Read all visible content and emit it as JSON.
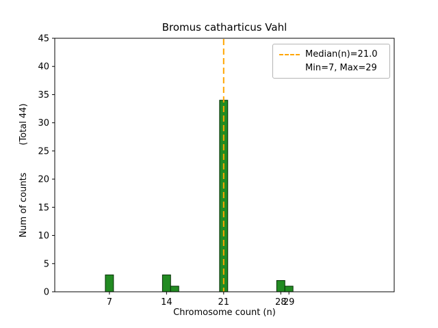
{
  "figure": {
    "title": "Bromus catharticus Vahl",
    "xlabel": "Chromosome count (n)",
    "ylabel_main": "Num of counts",
    "ylabel_total": "(Total 44)"
  },
  "legend": {
    "entries": [
      {
        "label": "Median(n)=21.0",
        "handle": "dashed-line",
        "color": "#FFA500"
      },
      {
        "label": "Min=7, Max=29",
        "handle": "none"
      }
    ]
  },
  "chart_data": {
    "type": "bar",
    "title": "Bromus catharticus Vahl",
    "xlabel": "Chromosome count (n)",
    "ylabel": "Num of counts    (Total 44)",
    "total_counts": 44,
    "x": [
      7,
      14,
      15,
      21,
      28,
      29
    ],
    "values": [
      3,
      3,
      1,
      34,
      2,
      1
    ],
    "bar_width": 1.0,
    "xticks": [
      7,
      14,
      21,
      28,
      29
    ],
    "yticks": [
      0,
      5,
      10,
      15,
      20,
      25,
      30,
      35,
      40,
      45
    ],
    "xlim": [
      0.3,
      41.9
    ],
    "ylim": [
      0,
      45
    ],
    "median": 21.0,
    "min": 7,
    "max": 29,
    "grid": false,
    "legend_position": "upper right",
    "colors": {
      "bar_fill": "#228B22",
      "bar_edge": "#062e06",
      "median_line": "#FFA500",
      "axes": "#000000"
    }
  }
}
